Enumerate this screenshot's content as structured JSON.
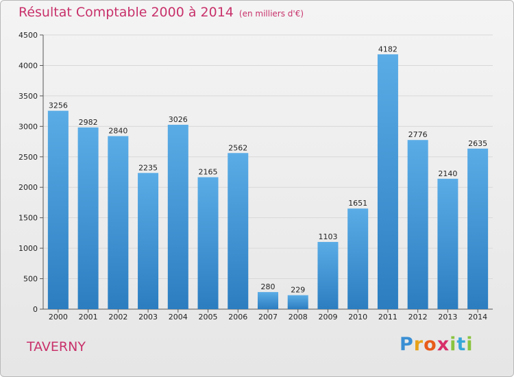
{
  "header": {
    "title": "Résultat Comptable 2000 à 2014",
    "unit": "(en milliers d'€)"
  },
  "footer": {
    "town": "TAVERNY",
    "logo_text": "Proxiti"
  },
  "colors": {
    "title": "#c8316a",
    "bar_light": "#5aace6",
    "bar_dark": "#2b7dc0",
    "grid": "#d8d8d8"
  },
  "chart_data": {
    "type": "bar",
    "title": "Résultat Comptable 2000 à 2014",
    "subtitle": "(en milliers d'€)",
    "xlabel": "",
    "ylabel": "",
    "categories": [
      "2000",
      "2001",
      "2002",
      "2003",
      "2004",
      "2005",
      "2006",
      "2007",
      "2008",
      "2009",
      "2010",
      "2011",
      "2012",
      "2013",
      "2014"
    ],
    "values": [
      3256,
      2982,
      2840,
      2235,
      3026,
      2165,
      2562,
      280,
      229,
      1103,
      1651,
      4182,
      2776,
      2140,
      2635
    ],
    "ylim": [
      0,
      4500
    ],
    "yticks": [
      0,
      500,
      1000,
      1500,
      2000,
      2500,
      3000,
      3500,
      4000,
      4500
    ],
    "grid": true,
    "legend": "none",
    "data_labels": true
  }
}
